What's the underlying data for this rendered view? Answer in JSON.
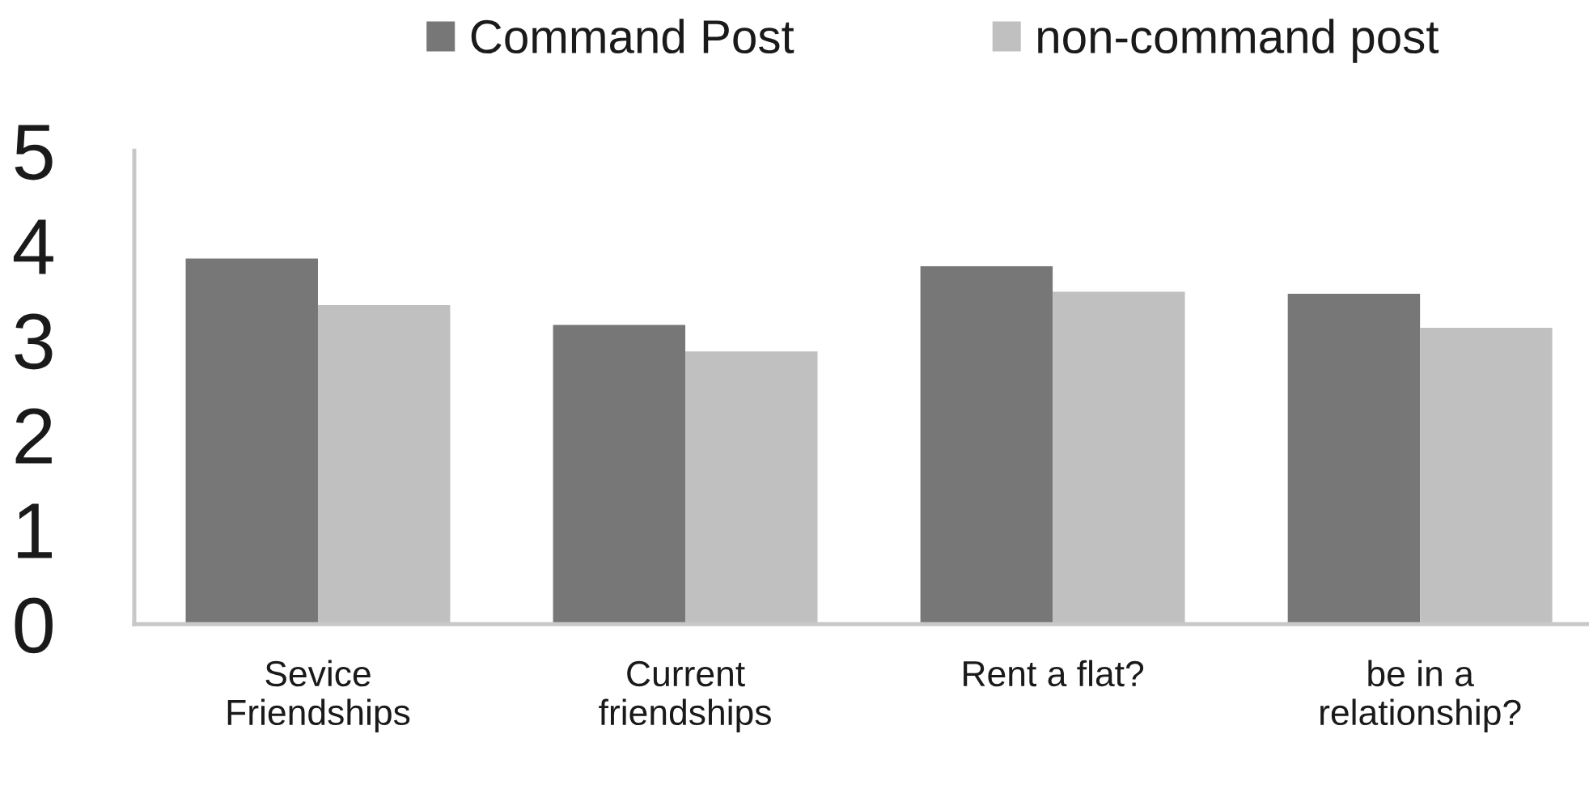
{
  "chart_data": {
    "type": "bar",
    "categories": [
      "Sevice\nFriendships",
      "Current\nfriendships",
      "Rent a flat?",
      "be in a\nrelationship?"
    ],
    "series": [
      {
        "name": "Command Post",
        "color": "#777777",
        "values": [
          3.86,
          3.16,
          3.78,
          3.49
        ]
      },
      {
        "name": "non-command post",
        "color": "#c0c0c0",
        "values": [
          3.37,
          2.88,
          3.51,
          3.13
        ]
      }
    ],
    "ylim": [
      0,
      5
    ],
    "yticks": [
      0,
      1,
      2,
      3,
      4,
      5
    ],
    "grid": false,
    "legend": "top"
  }
}
